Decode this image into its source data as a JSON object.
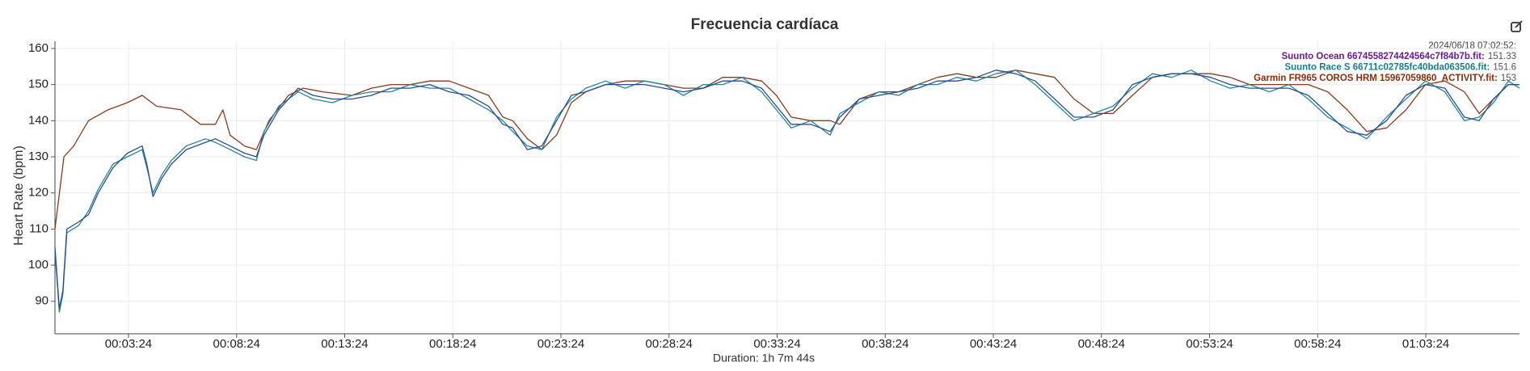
{
  "chart_data": {
    "type": "line",
    "title": "Frecuencia cardíaca",
    "x_label": "Duration: 1h 7m 44s",
    "y_label": "Heart Rate (bpm)",
    "tooltip_time": "2024/06/18 07:02:52:",
    "xlim": [
      0,
      4064
    ],
    "ylim": [
      81,
      162
    ],
    "xticks": [
      {
        "value": 204,
        "label": "00:03:24"
      },
      {
        "value": 504,
        "label": "00:08:24"
      },
      {
        "value": 804,
        "label": "00:13:24"
      },
      {
        "value": 1104,
        "label": "00:18:24"
      },
      {
        "value": 1404,
        "label": "00:23:24"
      },
      {
        "value": 1704,
        "label": "00:28:24"
      },
      {
        "value": 2004,
        "label": "00:33:24"
      },
      {
        "value": 2304,
        "label": "00:38:24"
      },
      {
        "value": 2604,
        "label": "00:43:24"
      },
      {
        "value": 2904,
        "label": "00:48:24"
      },
      {
        "value": 3204,
        "label": "00:53:24"
      },
      {
        "value": 3504,
        "label": "00:58:24"
      },
      {
        "value": 3804,
        "label": "01:03:24"
      }
    ],
    "yticks": [
      90,
      100,
      110,
      120,
      130,
      140,
      150,
      160
    ],
    "grid": true,
    "series": [
      {
        "name": "Suunto Ocean 6674558274424564c7f84b7b.fit:",
        "color": "#6a1b9a",
        "line_color": "#2c4a9a",
        "hover_value": 151.33,
        "x": [
          0,
          12,
          22,
          33,
          66,
          93,
          120,
          161,
          201,
          242,
          255,
          272,
          296,
          323,
          364,
          418,
          445,
          486,
          526,
          559,
          580,
          621,
          675,
          716,
          770,
          824,
          878,
          932,
          986,
          1040,
          1094,
          1149,
          1203,
          1243,
          1270,
          1311,
          1351,
          1392,
          1433,
          1473,
          1528,
          1582,
          1636,
          1690,
          1744,
          1799,
          1853,
          1907,
          1961,
          2002,
          2043,
          2097,
          2151,
          2178,
          2232,
          2287,
          2341,
          2395,
          2449,
          2503,
          2557,
          2611,
          2666,
          2720,
          2774,
          2828,
          2882,
          2936,
          2990,
          3045,
          3099,
          3153,
          3207,
          3261,
          3315,
          3370,
          3424,
          3478,
          3532,
          3586,
          3640,
          3695,
          3749,
          3803,
          3857,
          3911,
          3952,
          3992,
          4033,
          4064
        ],
        "values": [
          105,
          88,
          93,
          110,
          112,
          114,
          120,
          127,
          131,
          133,
          128,
          119,
          124,
          128,
          132,
          134,
          135,
          133,
          131,
          130,
          136,
          143,
          149,
          147,
          146,
          146,
          147,
          149,
          149,
          150,
          148,
          147,
          144,
          139,
          138,
          132,
          133,
          140,
          147,
          148,
          150,
          150,
          150,
          149,
          148,
          149,
          151,
          151,
          149,
          144,
          139,
          139,
          137,
          141,
          146,
          147,
          148,
          149,
          151,
          151,
          152,
          154,
          153,
          151,
          146,
          141,
          141,
          143,
          150,
          152,
          153,
          153,
          152,
          150,
          149,
          149,
          149,
          147,
          142,
          137,
          136,
          140,
          147,
          150,
          149,
          141,
          140,
          146,
          150,
          150
        ]
      },
      {
        "name": "Suunto Race S 66711c02785fc40bda063506.fit:",
        "color": "#16808a",
        "line_color": "#1f8a96",
        "hover_value": 151.6,
        "x": [
          0,
          12,
          22,
          33,
          66,
          93,
          120,
          161,
          201,
          242,
          255,
          272,
          296,
          323,
          364,
          418,
          445,
          486,
          526,
          559,
          580,
          621,
          675,
          716,
          770,
          824,
          878,
          932,
          986,
          1040,
          1094,
          1149,
          1203,
          1243,
          1270,
          1311,
          1351,
          1392,
          1433,
          1473,
          1528,
          1582,
          1636,
          1690,
          1744,
          1799,
          1853,
          1907,
          1961,
          2002,
          2043,
          2097,
          2151,
          2178,
          2232,
          2287,
          2341,
          2395,
          2449,
          2503,
          2557,
          2611,
          2666,
          2720,
          2774,
          2828,
          2882,
          2936,
          2990,
          3045,
          3099,
          3153,
          3207,
          3261,
          3315,
          3370,
          3424,
          3478,
          3532,
          3586,
          3640,
          3695,
          3749,
          3803,
          3857,
          3911,
          3952,
          3992,
          4033,
          4064
        ],
        "values": [
          104,
          87,
          92,
          109,
          111,
          115,
          121,
          128,
          130,
          132,
          127,
          120,
          125,
          129,
          133,
          135,
          134,
          132,
          130,
          129,
          137,
          144,
          148,
          146,
          145,
          147,
          148,
          148,
          150,
          149,
          149,
          146,
          143,
          140,
          137,
          133,
          132,
          141,
          146,
          149,
          151,
          149,
          151,
          150,
          147,
          150,
          150,
          152,
          148,
          143,
          138,
          140,
          136,
          142,
          145,
          148,
          147,
          150,
          150,
          152,
          151,
          153,
          154,
          150,
          145,
          140,
          142,
          144,
          149,
          153,
          152,
          154,
          151,
          149,
          150,
          148,
          150,
          146,
          141,
          138,
          135,
          141,
          146,
          151,
          148,
          140,
          141,
          145,
          151,
          149
        ]
      },
      {
        "name": "Garmin FR965 COROS HRM 15967059860_ACTIVITY.fit:",
        "color": "#8b2e0a",
        "line_color": "#8b3a1a",
        "hover_value": 153,
        "x": [
          0,
          25,
          52,
          93,
          147,
          201,
          242,
          282,
          350,
          404,
          445,
          466,
          486,
          526,
          559,
          594,
          648,
          689,
          743,
          824,
          878,
          932,
          986,
          1040,
          1094,
          1149,
          1203,
          1243,
          1270,
          1311,
          1351,
          1392,
          1433,
          1473,
          1528,
          1582,
          1636,
          1690,
          1744,
          1799,
          1853,
          1907,
          1961,
          2002,
          2043,
          2097,
          2151,
          2178,
          2232,
          2287,
          2341,
          2395,
          2449,
          2503,
          2557,
          2611,
          2666,
          2720,
          2774,
          2828,
          2882,
          2936,
          2990,
          3045,
          3099,
          3153,
          3207,
          3261,
          3315,
          3370,
          3424,
          3478,
          3532,
          3586,
          3640,
          3695,
          3749,
          3803,
          3857,
          3911,
          3952,
          3992,
          4033,
          4064
        ],
        "values": [
          110,
          130,
          133,
          140,
          143,
          145,
          147,
          144,
          143,
          139,
          139,
          143,
          136,
          133,
          132,
          140,
          147,
          149,
          148,
          147,
          149,
          150,
          150,
          151,
          151,
          149,
          147,
          141,
          140,
          135,
          132,
          136,
          145,
          148,
          150,
          151,
          151,
          150,
          149,
          149,
          152,
          152,
          151,
          147,
          141,
          140,
          140,
          139,
          146,
          148,
          148,
          150,
          152,
          153,
          152,
          152,
          154,
          153,
          152,
          146,
          142,
          142,
          147,
          152,
          153,
          153,
          153,
          152,
          150,
          150,
          150,
          150,
          148,
          143,
          137,
          138,
          143,
          150,
          151,
          148,
          142,
          146,
          150,
          150
        ]
      }
    ]
  }
}
